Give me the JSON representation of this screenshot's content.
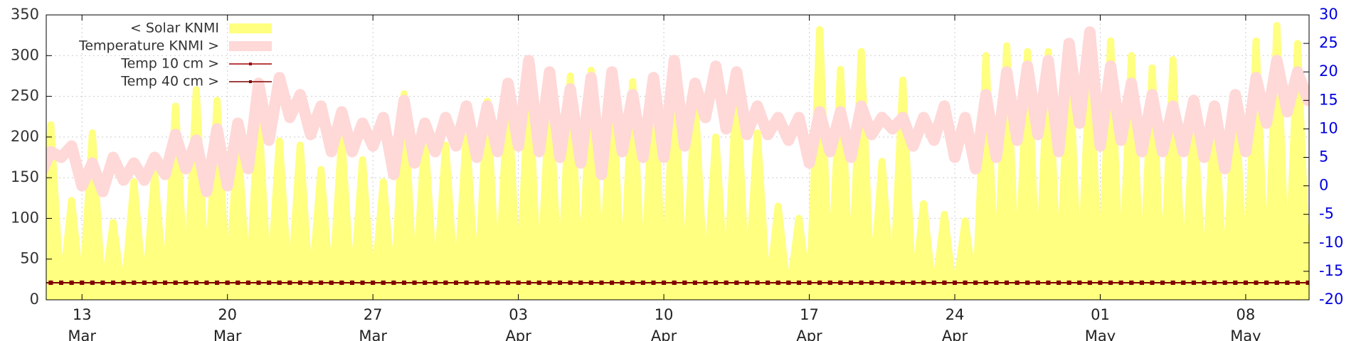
{
  "chart_data": {
    "type": "line",
    "xlim": [
      -1.72,
      59.05
    ],
    "xticks": [
      {
        "value": 0,
        "label": "13\nMar"
      },
      {
        "value": 7,
        "label": "20\nMar"
      },
      {
        "value": 14,
        "label": "27\nMar"
      },
      {
        "value": 21,
        "label": "03\nApr"
      },
      {
        "value": 28,
        "label": "10\nApr"
      },
      {
        "value": 35,
        "label": "17\nApr"
      },
      {
        "value": 42,
        "label": "24\nApr"
      },
      {
        "value": 49,
        "label": "01\nMay"
      },
      {
        "value": 56,
        "label": "08\nMay"
      }
    ],
    "ylim": [
      0,
      350
    ],
    "yticks": [
      0,
      50,
      100,
      150,
      200,
      250,
      300,
      350
    ],
    "y2lim": [
      -20,
      30
    ],
    "y2ticks": [
      -20,
      -15,
      -10,
      -5,
      0,
      5,
      10,
      15,
      20,
      25,
      30
    ],
    "y2color": "#0000e0",
    "grid": true,
    "x": [
      -2,
      -1.5,
      -1,
      -0.5,
      0,
      0.5,
      1,
      1.5,
      2,
      2.5,
      3,
      3.5,
      4,
      4.5,
      5,
      5.5,
      6,
      6.5,
      7,
      7.5,
      8,
      8.5,
      9,
      9.5,
      10,
      10.5,
      11,
      11.5,
      12,
      12.5,
      13,
      13.5,
      14,
      14.5,
      15,
      15.5,
      16,
      16.5,
      17,
      17.5,
      18,
      18.5,
      19,
      19.5,
      20,
      20.5,
      21,
      21.5,
      22,
      22.5,
      23,
      23.5,
      24,
      24.5,
      25,
      25.5,
      26,
      26.5,
      27,
      27.5,
      28,
      28.5,
      29,
      29.5,
      30,
      30.5,
      31,
      31.5,
      32,
      32.5,
      33,
      33.5,
      34,
      34.5,
      35,
      35.5,
      36,
      36.5,
      37,
      37.5,
      38,
      38.5,
      39,
      39.5,
      40,
      40.5,
      41,
      41.5,
      42,
      42.5,
      43,
      43.5,
      44,
      44.5,
      45,
      45.5,
      46,
      46.5,
      47,
      47.5,
      48,
      48.5,
      49,
      49.5,
      50,
      50.5,
      51,
      51.5,
      52,
      52.5,
      53,
      53.5,
      54,
      54.5,
      55,
      55.5,
      56,
      56.5,
      57,
      57.5,
      58,
      58.5,
      59
    ],
    "series": [
      {
        "name": "< Solar KNMI",
        "color": "#ffff80",
        "style": "area",
        "axis": "y",
        "values": [
          0,
          215,
          0,
          122,
          0,
          205,
          0,
          95,
          0,
          145,
          0,
          155,
          0,
          238,
          0,
          258,
          0,
          245,
          0,
          200,
          0,
          230,
          0,
          195,
          0,
          190,
          0,
          160,
          0,
          200,
          0,
          172,
          0,
          145,
          0,
          253,
          0,
          200,
          0,
          190,
          0,
          205,
          0,
          244,
          0,
          258,
          0,
          265,
          0,
          250,
          0,
          275,
          0,
          282,
          0,
          278,
          0,
          268,
          0,
          275,
          0,
          275,
          0,
          250,
          0,
          200,
          0,
          270,
          0,
          205,
          0,
          115,
          0,
          100,
          0,
          332,
          0,
          283,
          0,
          305,
          0,
          170,
          0,
          270,
          0,
          118,
          0,
          105,
          0,
          97,
          0,
          300,
          0,
          312,
          0,
          305,
          0,
          305,
          0,
          305,
          0,
          290,
          0,
          318,
          0,
          300,
          0,
          285,
          0,
          295,
          0,
          230,
          0,
          240,
          0,
          250,
          0,
          318,
          0,
          337,
          0,
          315,
          0
        ]
      },
      {
        "name": "Temperature KNMI >",
        "color": "#ffd8d8",
        "style": "band",
        "axis": "y2",
        "values": [
          2,
          6,
          5,
          7,
          0,
          4,
          -1,
          5,
          1,
          4,
          1,
          5,
          2,
          9,
          3,
          8,
          -1,
          10,
          0,
          11,
          3,
          18,
          8,
          19,
          12,
          16,
          9,
          14,
          6,
          13,
          6,
          11,
          7,
          12,
          2,
          15,
          4,
          11,
          6,
          12,
          7,
          14,
          5,
          14,
          6,
          18,
          7,
          22,
          6,
          20,
          5,
          17,
          4,
          19,
          2,
          20,
          6,
          16,
          5,
          19,
          5,
          22,
          7,
          18,
          12,
          21,
          10,
          20,
          9,
          14,
          9,
          12,
          8,
          12,
          4,
          13,
          6,
          13,
          5,
          14,
          9,
          12,
          10,
          12,
          7,
          12,
          8,
          14,
          5,
          12,
          3,
          16,
          5,
          20,
          8,
          21,
          9,
          22,
          6,
          25,
          11,
          27,
          7,
          21,
          8,
          18,
          6,
          16,
          6,
          14,
          6,
          15,
          5,
          14,
          3,
          16,
          6,
          19,
          11,
          22,
          13,
          20,
          15
        ]
      },
      {
        "name": "Temp 10 cm >",
        "color": "#a00000",
        "style": "linepoints",
        "axis": "y2",
        "values": [
          -17,
          -17,
          -17,
          -17,
          -17,
          -17,
          -17,
          -17,
          -17,
          -17,
          -17,
          -17,
          -17,
          -17,
          -17,
          -17,
          -17,
          -17,
          -17,
          -17,
          -17,
          -17,
          -17,
          -17,
          -17,
          -17,
          -17,
          -17,
          -17,
          -17,
          -17,
          -17,
          -17,
          -17,
          -17,
          -17,
          -17,
          -17,
          -17,
          -17,
          -17,
          -17,
          -17,
          -17,
          -17,
          -17,
          -17,
          -17,
          -17,
          -17,
          -17,
          -17,
          -17,
          -17,
          -17,
          -17,
          -17,
          -17,
          -17,
          -17,
          -17,
          -17,
          -17,
          -17,
          -17,
          -17,
          -17,
          -17,
          -17,
          -17,
          -17,
          -17,
          -17,
          -17,
          -17,
          -17,
          -17,
          -17,
          -17,
          -17,
          -17,
          -17,
          -17,
          -17,
          -17,
          -17,
          -17,
          -17,
          -17,
          -17,
          -17,
          -17,
          -17,
          -17,
          -17,
          -17,
          -17,
          -17,
          -17,
          -17,
          -17,
          -17,
          -17,
          -17,
          -17,
          -17,
          -17,
          -17,
          -17,
          -17,
          -17,
          -17,
          -17,
          -17,
          -17,
          -17,
          -17,
          -17,
          -17,
          -17,
          -17,
          -17,
          -17
        ]
      },
      {
        "name": "Temp 40 cm >",
        "color": "#800000",
        "style": "linepoints",
        "axis": "y2",
        "values": [
          -17,
          -17,
          -17,
          -17,
          -17,
          -17,
          -17,
          -17,
          -17,
          -17,
          -17,
          -17,
          -17,
          -17,
          -17,
          -17,
          -17,
          -17,
          -17,
          -17,
          -17,
          -17,
          -17,
          -17,
          -17,
          -17,
          -17,
          -17,
          -17,
          -17,
          -17,
          -17,
          -17,
          -17,
          -17,
          -17,
          -17,
          -17,
          -17,
          -17,
          -17,
          -17,
          -17,
          -17,
          -17,
          -17,
          -17,
          -17,
          -17,
          -17,
          -17,
          -17,
          -17,
          -17,
          -17,
          -17,
          -17,
          -17,
          -17,
          -17,
          -17,
          -17,
          -17,
          -17,
          -17,
          -17,
          -17,
          -17,
          -17,
          -17,
          -17,
          -17,
          -17,
          -17,
          -17,
          -17,
          -17,
          -17,
          -17,
          -17,
          -17,
          -17,
          -17,
          -17,
          -17,
          -17,
          -17,
          -17,
          -17,
          -17,
          -17,
          -17,
          -17,
          -17,
          -17,
          -17,
          -17,
          -17,
          -17,
          -17,
          -17,
          -17,
          -17,
          -17,
          -17,
          -17,
          -17,
          -17,
          -17,
          -17,
          -17,
          -17,
          -17,
          -17,
          -17,
          -17,
          -17,
          -17,
          -17,
          -17,
          -17,
          -17,
          -17
        ]
      }
    ]
  }
}
